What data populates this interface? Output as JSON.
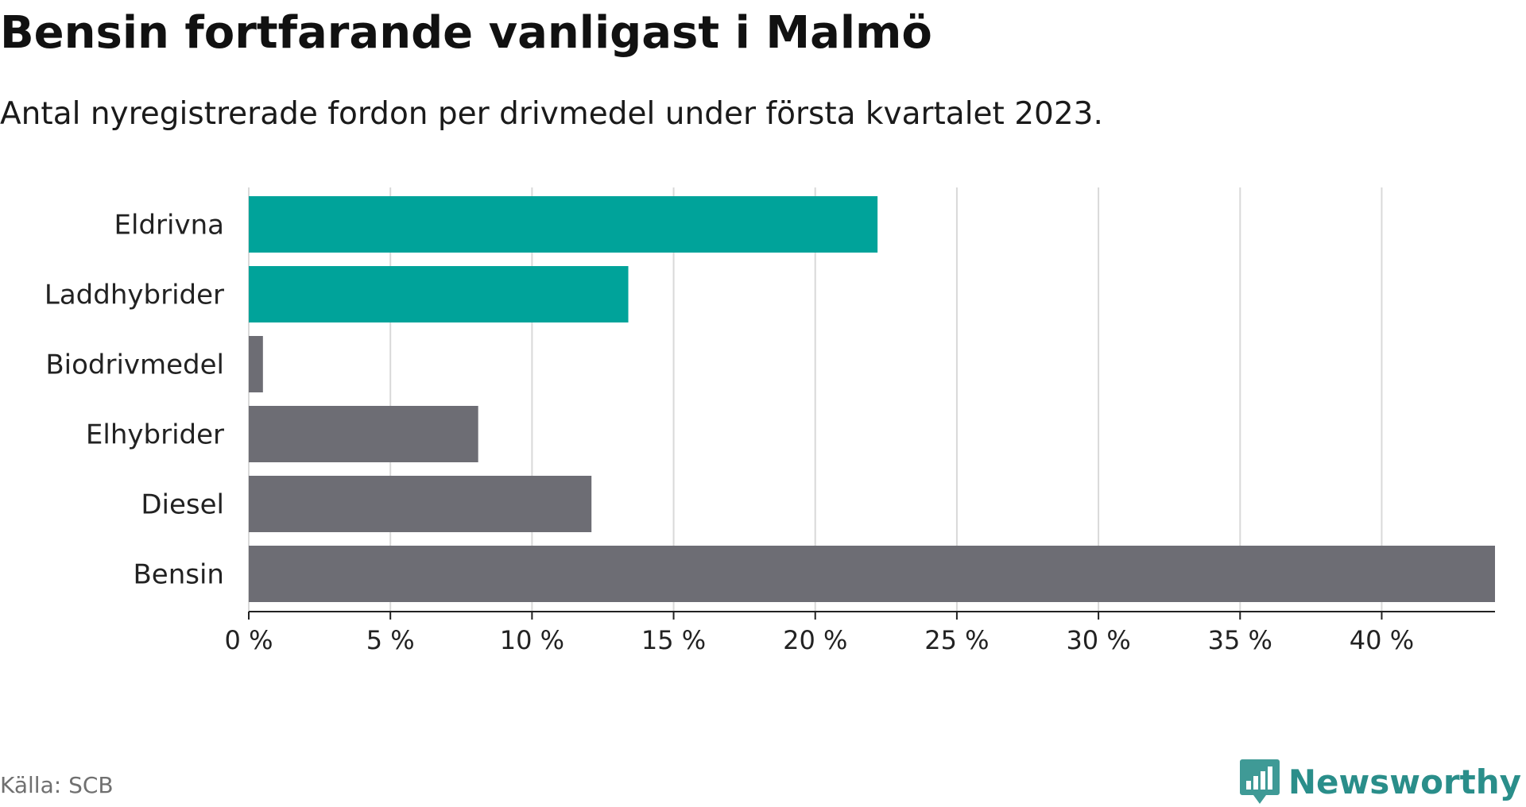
{
  "header": {
    "title": "Bensin fortfarande vanligast i Malmö",
    "subtitle": "Antal nyregistrerade fordon per drivmedel under första kvartalet 2023."
  },
  "footer": {
    "source": "Källa: SCB",
    "brand": "Newsworthy",
    "brand_icon": "bar-chart-speech-bubble-icon"
  },
  "colors": {
    "highlight": "#00a39a",
    "default": "#6d6d74",
    "grid": "#d9d9d9",
    "axis": "#222222",
    "brand": "#2a8e8a"
  },
  "chart_data": {
    "type": "bar",
    "orientation": "horizontal",
    "title": "Bensin fortfarande vanligast i Malmö",
    "subtitle": "Antal nyregistrerade fordon per drivmedel under första kvartalet 2023.",
    "categories": [
      "Eldrivna",
      "Laddhybrider",
      "Biodrivmedel",
      "Elhybrider",
      "Diesel",
      "Bensin"
    ],
    "values": [
      22.2,
      13.4,
      0.5,
      8.1,
      12.1,
      44.0
    ],
    "highlighted": [
      true,
      true,
      false,
      false,
      false,
      false
    ],
    "unit": "%",
    "xlim": [
      0,
      44
    ],
    "x_ticks": [
      0,
      5,
      10,
      15,
      20,
      25,
      30,
      35,
      40
    ],
    "x_tick_labels": [
      "0 %",
      "5 %",
      "10 %",
      "15 %",
      "20 %",
      "25 %",
      "30 %",
      "35 %",
      "40 %"
    ],
    "xlabel": "",
    "ylabel": "",
    "grid": true,
    "legend": "none"
  }
}
